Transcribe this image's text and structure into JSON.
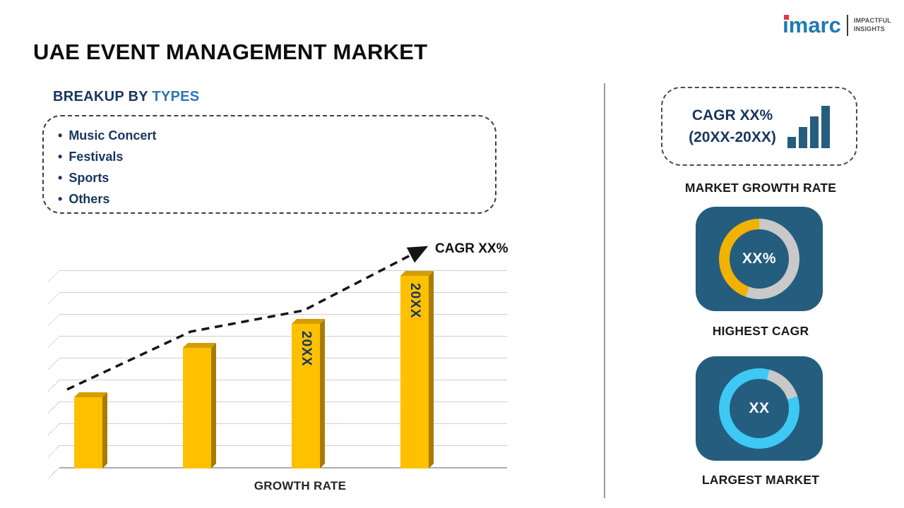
{
  "header": {
    "title": "UAE EVENT MANAGEMENT MARKET",
    "logo": {
      "brand": "imarc",
      "tagline_line1": "IMPACTFUL",
      "tagline_line2": "INSIGHTS"
    }
  },
  "breakup": {
    "heading_prefix": "BREAKUP BY ",
    "heading_accent": "TYPES",
    "bullet": "•",
    "items": [
      "Music Concert",
      "Festivals",
      "Sports",
      "Others"
    ]
  },
  "chart_data": {
    "type": "bar",
    "categories": [
      "",
      "",
      "20XX",
      "20XX"
    ],
    "values": [
      36,
      61,
      73,
      97
    ],
    "value_scale": "relative bar height, percent of plot height (no numeric axis shown)",
    "title": "",
    "xlabel": "GROWTH RATE",
    "ylabel": "",
    "ylim": [
      0,
      100
    ],
    "grid": true,
    "annotation": "CAGR XX%",
    "trend": "dashed ascending arrow",
    "bar_color": "#ffc000"
  },
  "right": {
    "cagr_box": {
      "line1": "CAGR XX%",
      "line2": "(20XX-20XX)"
    },
    "market_growth_label": "MARKET GROWTH RATE",
    "highest_cagr": {
      "value": "XX%",
      "label": "HIGHEST CAGR"
    },
    "largest_market": {
      "value": "XX",
      "label": "LARGEST MARKET"
    }
  },
  "colors": {
    "navy": "#17365d",
    "accent_blue": "#2e74b5",
    "bar_gold": "#ffc000",
    "bar_gold_top": "#d49e00",
    "bar_gold_side": "#a87c00",
    "panel_blue": "#255d7f",
    "donut_gray": "#c9c9c9",
    "donut_yellow": "#f2b200",
    "donut_cyan": "#3ec9f5",
    "logo_blue": "#2178b4",
    "logo_red": "#e03a3e"
  }
}
